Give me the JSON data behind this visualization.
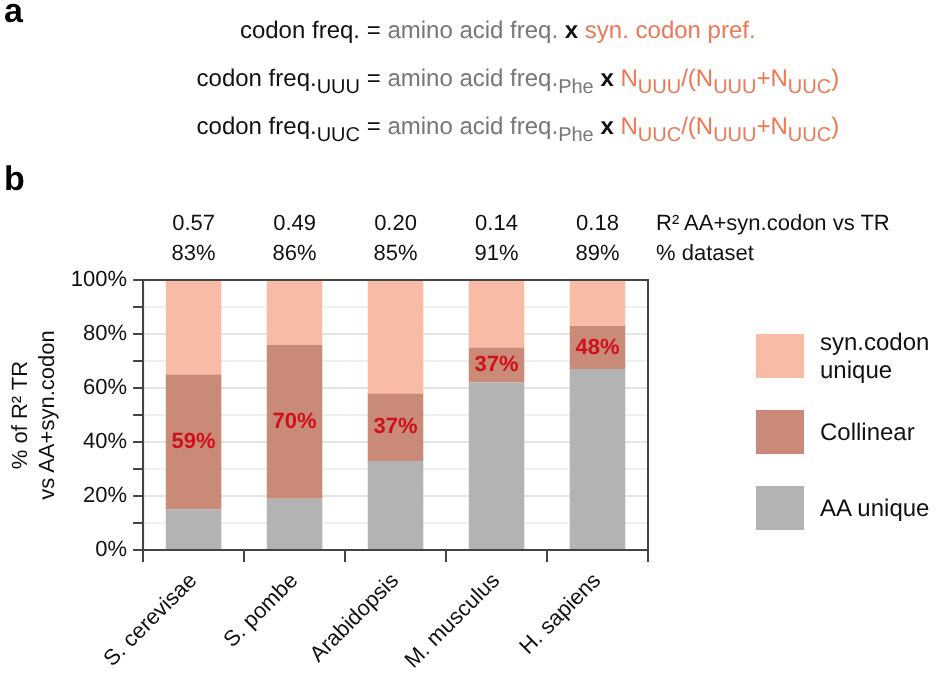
{
  "chart_data": {
    "type": "bar",
    "stacked": true,
    "ylabel": "% of R² TR vs AA+syn.codon",
    "categories": [
      "S. cerevisae",
      "S. pombe",
      "Arabidopsis",
      "M. musculus",
      "H. sapiens"
    ],
    "series": [
      {
        "name": "AA unique",
        "color": "#b3b3b3",
        "values": [
          15,
          19,
          33,
          62,
          67
        ]
      },
      {
        "name": "Collinear",
        "color": "#c98a78",
        "values": [
          50,
          57,
          25,
          13,
          16
        ]
      },
      {
        "name": "syn.codon unique",
        "color": "#f8bba6",
        "values": [
          35,
          24,
          42,
          25,
          17
        ]
      }
    ],
    "ylim": [
      0,
      100
    ],
    "yticks": [
      {
        "value": 0,
        "label": "0%"
      },
      {
        "value": 10,
        "label": null
      },
      {
        "value": 20,
        "label": "20%"
      },
      {
        "value": 30,
        "label": null
      },
      {
        "value": 40,
        "label": "40%"
      },
      {
        "value": 50,
        "label": null
      },
      {
        "value": 60,
        "label": "60%"
      },
      {
        "value": 70,
        "label": null
      },
      {
        "value": 80,
        "label": "80%"
      },
      {
        "value": 90,
        "label": null
      },
      {
        "value": 100,
        "label": "100%"
      }
    ],
    "grid": "y",
    "legend": "right",
    "annotations": [
      "a",
      "codon freq. = amino acid freq. x syn. codon pref.",
      "codon freq.$_{UUU}$ = amino acid freq.$_{Phe}$ x N$_{UUU}$/(N$_{UUU}$+N$_{UUC}$)",
      "codon freq.$_{UUC}$ = amino acid freq.$_{Phe}$ x N$_{UUC}$/(N$_{UUU}$+N$_{UUC}$)",
      "b",
      "R² AA+syn.codon vs TR",
      "% dataset",
      "0.57",
      "0.49",
      "0.20",
      "0.14",
      "0.18",
      "83%",
      "86%",
      "85%",
      "91%",
      "89%",
      "59%",
      "70%",
      "37%",
      "37%",
      "48%"
    ]
  }
}
